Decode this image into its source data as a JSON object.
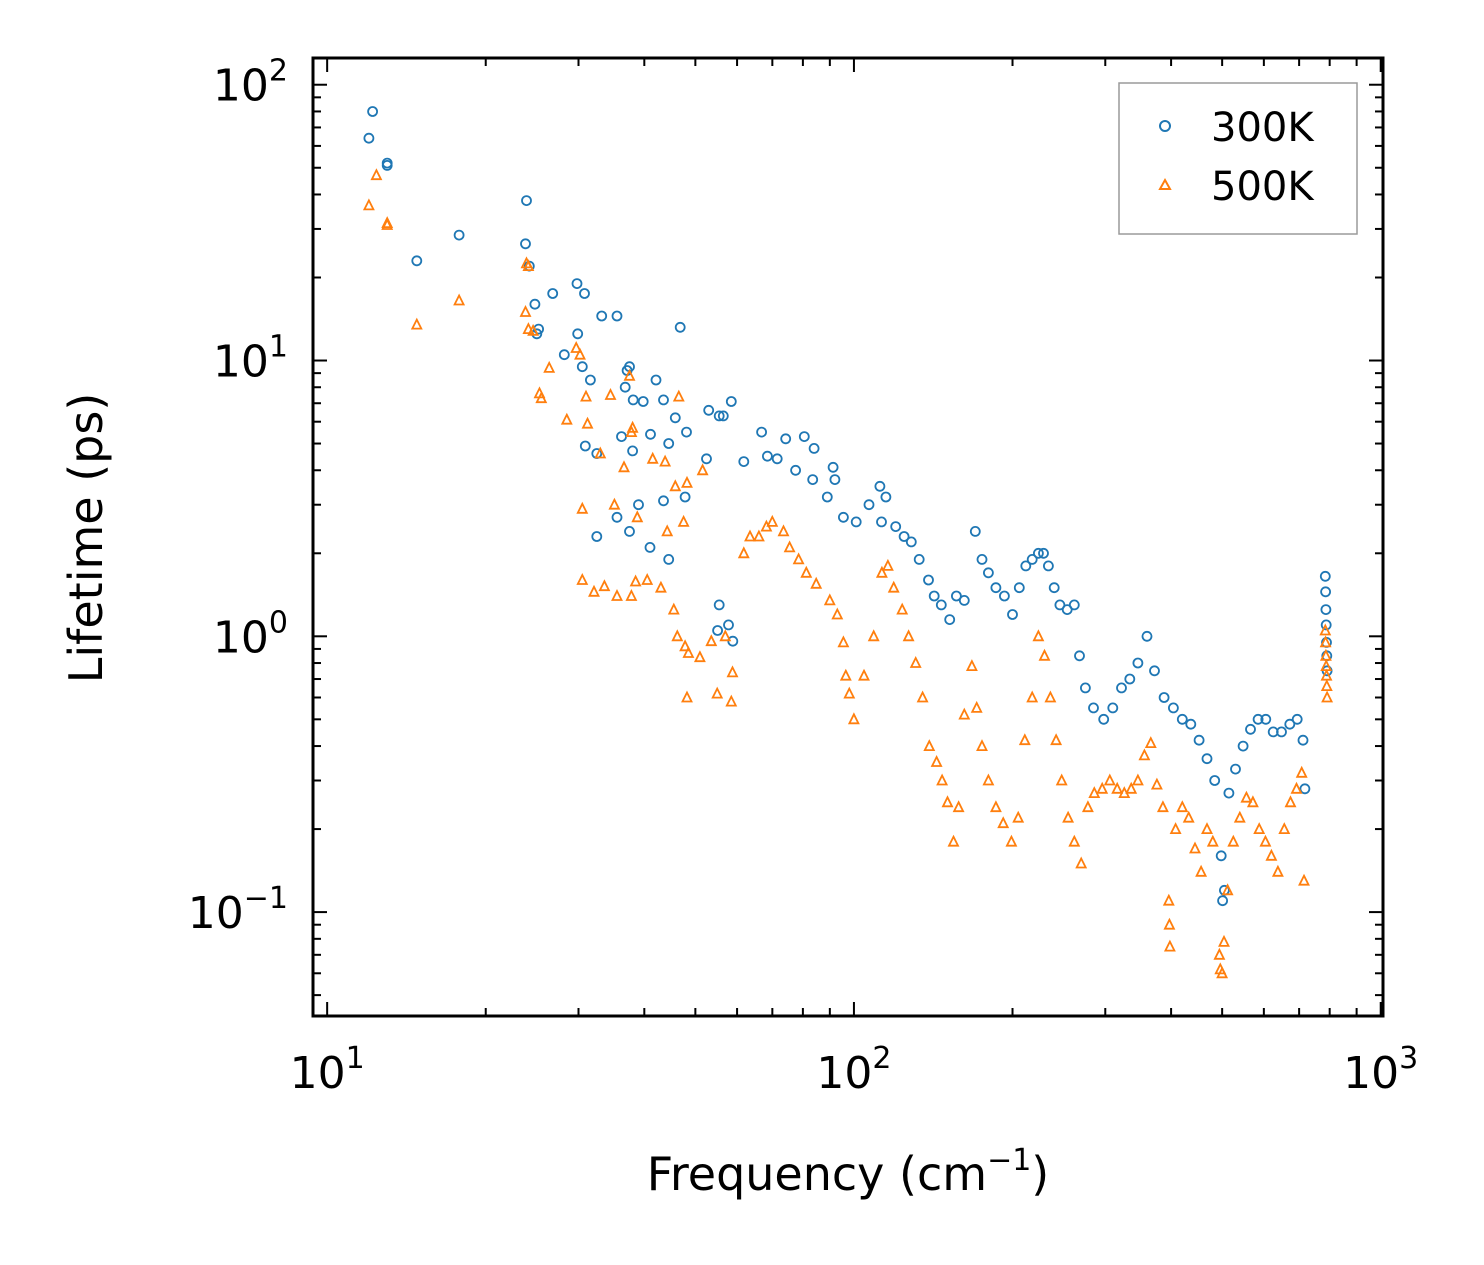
{
  "chart_data": {
    "type": "scatter",
    "xscale": "log",
    "yscale": "log",
    "xlabel": "Frequency (cm",
    "xlabel_exponent": "−1",
    "xlabel_close": ")",
    "ylabel": "Lifetime (ps)",
    "xlim": [
      9.4,
      1010
    ],
    "ylim": [
      0.042,
      125
    ],
    "xticks": [
      {
        "value": 10,
        "base": "10",
        "exp": "1"
      },
      {
        "value": 100,
        "base": "10",
        "exp": "2"
      },
      {
        "value": 1000,
        "base": "10",
        "exp": "3"
      }
    ],
    "yticks": [
      {
        "value": 0.1,
        "base": "10",
        "exp": "−1"
      },
      {
        "value": 1,
        "base": "10",
        "exp": "0"
      },
      {
        "value": 10,
        "base": "10",
        "exp": "1"
      },
      {
        "value": 100,
        "base": "10",
        "exp": "2"
      }
    ],
    "legend": {
      "position": "upper-right"
    },
    "series": [
      {
        "name": "300K",
        "marker": "circle",
        "color": "#1f77b4",
        "points": [
          [
            12.2,
            80
          ],
          [
            12.0,
            64
          ],
          [
            13.0,
            52
          ],
          [
            13.0,
            51
          ],
          [
            14.8,
            23
          ],
          [
            17.8,
            28.5
          ],
          [
            23.9,
            38
          ],
          [
            23.8,
            26.5
          ],
          [
            24.2,
            22
          ],
          [
            24.8,
            16
          ],
          [
            25.2,
            13
          ],
          [
            26.8,
            17.5
          ],
          [
            29.8,
            19
          ],
          [
            30.8,
            17.5
          ],
          [
            25.0,
            12.5
          ],
          [
            28.2,
            10.5
          ],
          [
            29.9,
            12.5
          ],
          [
            33.2,
            14.5
          ],
          [
            35.5,
            14.5
          ],
          [
            30.5,
            9.5
          ],
          [
            31.6,
            8.5
          ],
          [
            37.5,
            9.5
          ],
          [
            37.1,
            9.2
          ],
          [
            42.1,
            8.5
          ],
          [
            46.8,
            13.2
          ],
          [
            36.8,
            8.0
          ],
          [
            38.1,
            7.2
          ],
          [
            39.8,
            7.1
          ],
          [
            43.5,
            7.2
          ],
          [
            53.0,
            6.6
          ],
          [
            55.5,
            6.3
          ],
          [
            56.5,
            6.3
          ],
          [
            58.5,
            7.1
          ],
          [
            45.8,
            6.2
          ],
          [
            41.1,
            5.4
          ],
          [
            36.2,
            5.3
          ],
          [
            30.9,
            4.9
          ],
          [
            32.5,
            4.6
          ],
          [
            38.0,
            4.7
          ],
          [
            44.5,
            5.0
          ],
          [
            48.1,
            5.5
          ],
          [
            52.5,
            4.4
          ],
          [
            47.8,
            3.2
          ],
          [
            43.5,
            3.1
          ],
          [
            39.0,
            3.0
          ],
          [
            35.5,
            2.7
          ],
          [
            32.5,
            2.3
          ],
          [
            37.5,
            2.4
          ],
          [
            41.0,
            2.1
          ],
          [
            44.5,
            1.9
          ],
          [
            55.5,
            1.3
          ],
          [
            57.8,
            1.1
          ],
          [
            58.9,
            0.96
          ],
          [
            55.1,
            1.05
          ],
          [
            66.8,
            5.5
          ],
          [
            74.2,
            5.2
          ],
          [
            80.5,
            5.3
          ],
          [
            84.0,
            4.8
          ],
          [
            91.3,
            4.1
          ],
          [
            92.0,
            3.7
          ],
          [
            61.8,
            4.3
          ],
          [
            68.5,
            4.5
          ],
          [
            71.5,
            4.4
          ],
          [
            77.5,
            4.0
          ],
          [
            83.5,
            3.7
          ],
          [
            89.0,
            3.2
          ],
          [
            95.5,
            2.7
          ],
          [
            101.0,
            2.6
          ],
          [
            106.8,
            3.0
          ],
          [
            112.0,
            3.5
          ],
          [
            115.0,
            3.2
          ],
          [
            112.8,
            2.6
          ],
          [
            120.0,
            2.5
          ],
          [
            124.5,
            2.3
          ],
          [
            128.5,
            2.2
          ],
          [
            133.0,
            1.9
          ],
          [
            138.5,
            1.6
          ],
          [
            142.0,
            1.4
          ],
          [
            146.5,
            1.3
          ],
          [
            152.0,
            1.15
          ],
          [
            156.5,
            1.4
          ],
          [
            162.0,
            1.35
          ],
          [
            170.0,
            2.4
          ],
          [
            175.0,
            1.9
          ],
          [
            180.0,
            1.7
          ],
          [
            186.0,
            1.5
          ],
          [
            193.0,
            1.4
          ],
          [
            200.0,
            1.2
          ],
          [
            206.0,
            1.5
          ],
          [
            212.0,
            1.8
          ],
          [
            218.0,
            1.9
          ],
          [
            224.0,
            2.0
          ],
          [
            229.0,
            2.0
          ],
          [
            234.0,
            1.8
          ],
          [
            240.0,
            1.5
          ],
          [
            246.0,
            1.3
          ],
          [
            254.0,
            1.25
          ],
          [
            262.0,
            1.3
          ],
          [
            268.0,
            0.85
          ],
          [
            275.0,
            0.65
          ],
          [
            285.0,
            0.55
          ],
          [
            298.0,
            0.5
          ],
          [
            310.0,
            0.55
          ],
          [
            322.0,
            0.65
          ],
          [
            334.0,
            0.7
          ],
          [
            346.0,
            0.8
          ],
          [
            360.0,
            1.0
          ],
          [
            372.0,
            0.75
          ],
          [
            388.0,
            0.6
          ],
          [
            404.0,
            0.55
          ],
          [
            420.0,
            0.5
          ],
          [
            436.0,
            0.48
          ],
          [
            452.0,
            0.42
          ],
          [
            468.0,
            0.36
          ],
          [
            484.0,
            0.3
          ],
          [
            498.0,
            0.16
          ],
          [
            501.0,
            0.11
          ],
          [
            505.0,
            0.12
          ],
          [
            515.0,
            0.27
          ],
          [
            530.0,
            0.33
          ],
          [
            548.0,
            0.4
          ],
          [
            566.0,
            0.46
          ],
          [
            585.0,
            0.5
          ],
          [
            605.0,
            0.5
          ],
          [
            625.0,
            0.45
          ],
          [
            648.0,
            0.45
          ],
          [
            672.0,
            0.48
          ],
          [
            694.0,
            0.5
          ],
          [
            712.0,
            0.42
          ],
          [
            718.0,
            0.28
          ],
          [
            785.0,
            1.65
          ],
          [
            786.0,
            1.45
          ],
          [
            787.0,
            1.25
          ],
          [
            788.0,
            1.1
          ],
          [
            789.0,
            0.95
          ],
          [
            790.0,
            0.85
          ],
          [
            791.0,
            0.75
          ]
        ]
      },
      {
        "name": "500K",
        "marker": "triangle",
        "color": "#ff7f0e",
        "points": [
          [
            12.4,
            47
          ],
          [
            12.0,
            36.5
          ],
          [
            13.0,
            31.5
          ],
          [
            13.0,
            31
          ],
          [
            14.8,
            13.5
          ],
          [
            17.8,
            16.5
          ],
          [
            23.9,
            22.5
          ],
          [
            24.1,
            22
          ],
          [
            23.8,
            15
          ],
          [
            24.1,
            13
          ],
          [
            24.6,
            12.8
          ],
          [
            25.3,
            7.6
          ],
          [
            25.5,
            7.3
          ],
          [
            26.4,
            9.4
          ],
          [
            28.5,
            6.1
          ],
          [
            29.7,
            11.1
          ],
          [
            30.2,
            10.5
          ],
          [
            31.0,
            7.4
          ],
          [
            31.2,
            5.9
          ],
          [
            34.5,
            7.5
          ],
          [
            37.5,
            8.8
          ],
          [
            38.0,
            5.7
          ],
          [
            37.8,
            5.5
          ],
          [
            33.0,
            4.6
          ],
          [
            36.6,
            4.1
          ],
          [
            41.5,
            4.4
          ],
          [
            43.8,
            4.3
          ],
          [
            46.5,
            7.4
          ],
          [
            45.8,
            3.5
          ],
          [
            48.2,
            3.6
          ],
          [
            51.6,
            4.0
          ],
          [
            30.5,
            2.9
          ],
          [
            35.1,
            3.0
          ],
          [
            38.8,
            2.7
          ],
          [
            44.2,
            2.4
          ],
          [
            47.5,
            2.6
          ],
          [
            30.5,
            1.6
          ],
          [
            32.1,
            1.45
          ],
          [
            33.6,
            1.52
          ],
          [
            35.5,
            1.4
          ],
          [
            37.8,
            1.4
          ],
          [
            38.5,
            1.58
          ],
          [
            40.5,
            1.6
          ],
          [
            43.0,
            1.5
          ],
          [
            45.5,
            1.25
          ],
          [
            46.2,
            1.0
          ],
          [
            47.8,
            0.92
          ],
          [
            48.5,
            0.87
          ],
          [
            51.0,
            0.84
          ],
          [
            53.6,
            0.96
          ],
          [
            57.0,
            1.0
          ],
          [
            58.8,
            0.74
          ],
          [
            58.5,
            0.58
          ],
          [
            55.0,
            0.62
          ],
          [
            48.2,
            0.6
          ],
          [
            61.8,
            2.0
          ],
          [
            63.5,
            2.3
          ],
          [
            66.0,
            2.3
          ],
          [
            68.2,
            2.5
          ],
          [
            70.0,
            2.6
          ],
          [
            73.5,
            2.4
          ],
          [
            75.5,
            2.1
          ],
          [
            78.5,
            1.9
          ],
          [
            81.2,
            1.7
          ],
          [
            84.8,
            1.55
          ],
          [
            90.0,
            1.35
          ],
          [
            93.0,
            1.2
          ],
          [
            95.5,
            0.95
          ],
          [
            96.5,
            0.72
          ],
          [
            98.0,
            0.62
          ],
          [
            100.0,
            0.5
          ],
          [
            104.5,
            0.72
          ],
          [
            109.0,
            1.0
          ],
          [
            113.0,
            1.7
          ],
          [
            116.0,
            1.8
          ],
          [
            119.0,
            1.5
          ],
          [
            123.5,
            1.25
          ],
          [
            127.0,
            1.0
          ],
          [
            131.0,
            0.8
          ],
          [
            135.0,
            0.6
          ],
          [
            139.0,
            0.4
          ],
          [
            143.5,
            0.35
          ],
          [
            147.0,
            0.3
          ],
          [
            150.5,
            0.25
          ],
          [
            154.5,
            0.18
          ],
          [
            158.0,
            0.24
          ],
          [
            162.0,
            0.52
          ],
          [
            167.5,
            0.78
          ],
          [
            171.0,
            0.55
          ],
          [
            175.0,
            0.4
          ],
          [
            180.0,
            0.3
          ],
          [
            186.0,
            0.24
          ],
          [
            192.0,
            0.21
          ],
          [
            199.0,
            0.18
          ],
          [
            205.0,
            0.22
          ],
          [
            211.0,
            0.42
          ],
          [
            218.0,
            0.6
          ],
          [
            224.0,
            1.0
          ],
          [
            230.0,
            0.85
          ],
          [
            236.0,
            0.6
          ],
          [
            242.0,
            0.42
          ],
          [
            248.0,
            0.3
          ],
          [
            255.0,
            0.22
          ],
          [
            262.0,
            0.18
          ],
          [
            270.0,
            0.15
          ],
          [
            278.0,
            0.24
          ],
          [
            286.0,
            0.27
          ],
          [
            296.0,
            0.28
          ],
          [
            306.0,
            0.3
          ],
          [
            316.0,
            0.28
          ],
          [
            326.0,
            0.27
          ],
          [
            336.0,
            0.28
          ],
          [
            346.0,
            0.3
          ],
          [
            356.0,
            0.37
          ],
          [
            366.0,
            0.41
          ],
          [
            376.0,
            0.29
          ],
          [
            386.0,
            0.24
          ],
          [
            396.0,
            0.11
          ],
          [
            397.0,
            0.09
          ],
          [
            398.0,
            0.075
          ],
          [
            408.0,
            0.2
          ],
          [
            420.0,
            0.24
          ],
          [
            432.0,
            0.22
          ],
          [
            444.0,
            0.17
          ],
          [
            456.0,
            0.14
          ],
          [
            468.0,
            0.2
          ],
          [
            480.0,
            0.18
          ],
          [
            494.0,
            0.07
          ],
          [
            496.0,
            0.062
          ],
          [
            500.0,
            0.06
          ],
          [
            504.0,
            0.078
          ],
          [
            512.0,
            0.12
          ],
          [
            525.0,
            0.18
          ],
          [
            540.0,
            0.22
          ],
          [
            556.0,
            0.26
          ],
          [
            572.0,
            0.25
          ],
          [
            588.0,
            0.2
          ],
          [
            604.0,
            0.18
          ],
          [
            620.0,
            0.16
          ],
          [
            638.0,
            0.14
          ],
          [
            656.0,
            0.2
          ],
          [
            674.0,
            0.25
          ],
          [
            692.0,
            0.28
          ],
          [
            708.0,
            0.32
          ],
          [
            715.0,
            0.13
          ],
          [
            785.0,
            1.05
          ],
          [
            786.0,
            0.95
          ],
          [
            787.0,
            0.85
          ],
          [
            788.0,
            0.78
          ],
          [
            789.0,
            0.72
          ],
          [
            790.0,
            0.66
          ],
          [
            791.0,
            0.6
          ]
        ]
      }
    ]
  }
}
